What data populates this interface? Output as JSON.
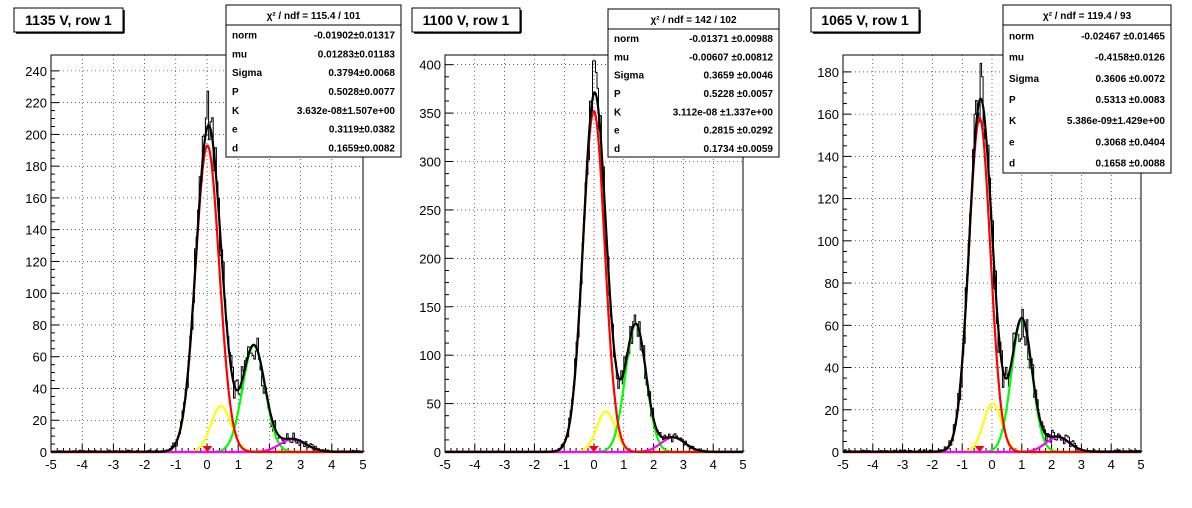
{
  "chart_data": [
    {
      "type": "line",
      "title": "1135 V, row 1",
      "xlim": [
        -5,
        5
      ],
      "ylim": [
        0,
        250
      ],
      "x_ticks": [
        -5,
        -4,
        -3,
        -2,
        -1,
        0,
        1,
        2,
        3,
        4,
        5
      ],
      "y_ticks": [
        0,
        20,
        40,
        60,
        80,
        100,
        120,
        140,
        160,
        180,
        200,
        220,
        240
      ],
      "grid": true,
      "params": {
        "mu": 0.01283,
        "sigma": 0.3794,
        "P": 0.5028,
        "e": 0.3119,
        "d": 0.1659,
        "peak_total": 210,
        "peak_red": 193,
        "peak_yellow": 29,
        "peak_green": 67,
        "peak_magenta": 8
      },
      "stats": {
        "header": "χ² / ndf = 115.4 / 101",
        "rows": [
          {
            "name": "norm",
            "value": "-0.01902±0.01317"
          },
          {
            "name": "mu",
            "value": "0.01283±0.01183"
          },
          {
            "name": "Sigma",
            "value": "0.3794±0.0068"
          },
          {
            "name": "P",
            "value": "0.5028±0.0077"
          },
          {
            "name": "K",
            "value": "3.632e-08±1.507e+00"
          },
          {
            "name": "e",
            "value": "0.3119±0.0382"
          },
          {
            "name": "d",
            "value": "0.1659±0.0082"
          }
        ]
      },
      "series": [
        {
          "name": "",
          "color": "#000000"
        },
        {
          "name": "",
          "color": "#ff0000"
        },
        {
          "name": "",
          "color": "#ffff00"
        },
        {
          "name": "",
          "color": "#00ff00"
        },
        {
          "name": "",
          "color": "#ff00ff"
        }
      ]
    },
    {
      "type": "line",
      "title": "1100 V, row 1",
      "xlim": [
        -5,
        5
      ],
      "ylim": [
        0,
        410
      ],
      "x_ticks": [
        -5,
        -4,
        -3,
        -2,
        -1,
        0,
        1,
        2,
        3,
        4,
        5
      ],
      "y_ticks": [
        0,
        50,
        100,
        150,
        200,
        250,
        300,
        350,
        400
      ],
      "grid": true,
      "params": {
        "mu": -0.00607,
        "sigma": 0.3659,
        "P": 0.5228,
        "e": 0.2815,
        "d": 0.1734,
        "peak_total": 370,
        "peak_red": 352,
        "peak_yellow": 42,
        "peak_green": 132,
        "peak_magenta": 15
      },
      "stats": {
        "header": "χ² / ndf = 142 / 102",
        "rows": [
          {
            "name": "norm",
            "value": "-0.01371 ±0.00988"
          },
          {
            "name": "mu",
            "value": "-0.00607 ±0.00812"
          },
          {
            "name": "Sigma",
            "value": "0.3659 ±0.0046"
          },
          {
            "name": "P",
            "value": "0.5228 ±0.0057"
          },
          {
            "name": "K",
            "value": "3.112e-08 ±1.337e+00"
          },
          {
            "name": "e",
            "value": "0.2815 ±0.0292"
          },
          {
            "name": "d",
            "value": "0.1734 ±0.0059"
          }
        ]
      },
      "series": [
        {
          "name": "",
          "color": "#000000"
        },
        {
          "name": "",
          "color": "#ff0000"
        },
        {
          "name": "",
          "color": "#ffff00"
        },
        {
          "name": "",
          "color": "#00ff00"
        },
        {
          "name": "",
          "color": "#ff00ff"
        }
      ]
    },
    {
      "type": "line",
      "title": "1065 V, row 1",
      "xlim": [
        -5,
        5
      ],
      "ylim": [
        0,
        188
      ],
      "x_ticks": [
        -5,
        -4,
        -3,
        -2,
        -1,
        0,
        1,
        2,
        3,
        4,
        5
      ],
      "y_ticks": [
        0,
        20,
        40,
        60,
        80,
        100,
        120,
        140,
        160,
        180
      ],
      "grid": true,
      "params": {
        "mu": -0.4158,
        "sigma": 0.3606,
        "P": 0.5313,
        "e": 0.3068,
        "d": 0.1658,
        "peak_total": 170,
        "peak_red": 158,
        "peak_yellow": 23,
        "peak_green": 63,
        "peak_magenta": 7
      },
      "stats": {
        "header": "χ² / ndf = 119.4 / 93",
        "rows": [
          {
            "name": "norm",
            "value": "-0.02467 ±0.01465"
          },
          {
            "name": "mu",
            "value": "-0.4158±0.0126"
          },
          {
            "name": "Sigma",
            "value": "0.3606 ±0.0072"
          },
          {
            "name": "P",
            "value": "0.5313 ±0.0083"
          },
          {
            "name": "K",
            "value": "5.386e-09±1.429e+00"
          },
          {
            "name": "e",
            "value": "0.3068 ±0.0404"
          },
          {
            "name": "d",
            "value": "0.1658 ±0.0088"
          }
        ]
      },
      "series": [
        {
          "name": "",
          "color": "#000000"
        },
        {
          "name": "",
          "color": "#ff0000"
        },
        {
          "name": "",
          "color": "#ffff00"
        },
        {
          "name": "",
          "color": "#00ff00"
        },
        {
          "name": "",
          "color": "#ff00ff"
        }
      ]
    }
  ]
}
